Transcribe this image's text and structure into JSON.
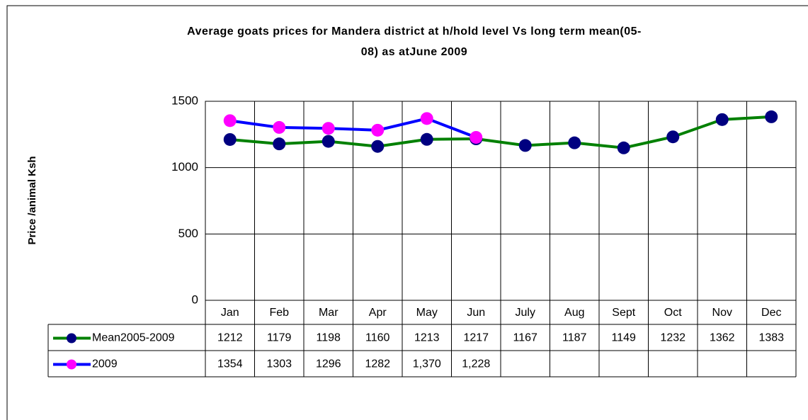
{
  "chart_data": {
    "type": "line",
    "title": [
      "Average goats prices for Mandera district at h/hold level Vs long term mean(05-",
      "08) as atJune 2009"
    ],
    "y_label": "Price /animal Ksh",
    "categories": [
      "Jan",
      "Feb",
      "Mar",
      "Apr",
      "May",
      "Jun",
      "July",
      "Aug",
      "Sept",
      "Oct",
      "Nov",
      "Dec"
    ],
    "series": [
      {
        "name": "Mean2005-2009",
        "color": "#008000",
        "marker_color": "#000080",
        "values": [
          1212,
          1179,
          1198,
          1160,
          1213,
          1217,
          1167,
          1187,
          1149,
          1232,
          1362,
          1383
        ]
      },
      {
        "name": "2009",
        "color": "#0000ff",
        "marker_color": "#ff00ff",
        "values": [
          1354,
          1303,
          1296,
          1282,
          1370,
          1228,
          null,
          null,
          null,
          null,
          null,
          null
        ],
        "value_labels": [
          "1354",
          "1303",
          "1296",
          "1282",
          "1,370",
          "1,228",
          null,
          null,
          null,
          null,
          null,
          null
        ]
      }
    ],
    "ylim": [
      0,
      1500
    ],
    "yticks": [
      0,
      500,
      1000,
      1500
    ],
    "grid": true
  }
}
